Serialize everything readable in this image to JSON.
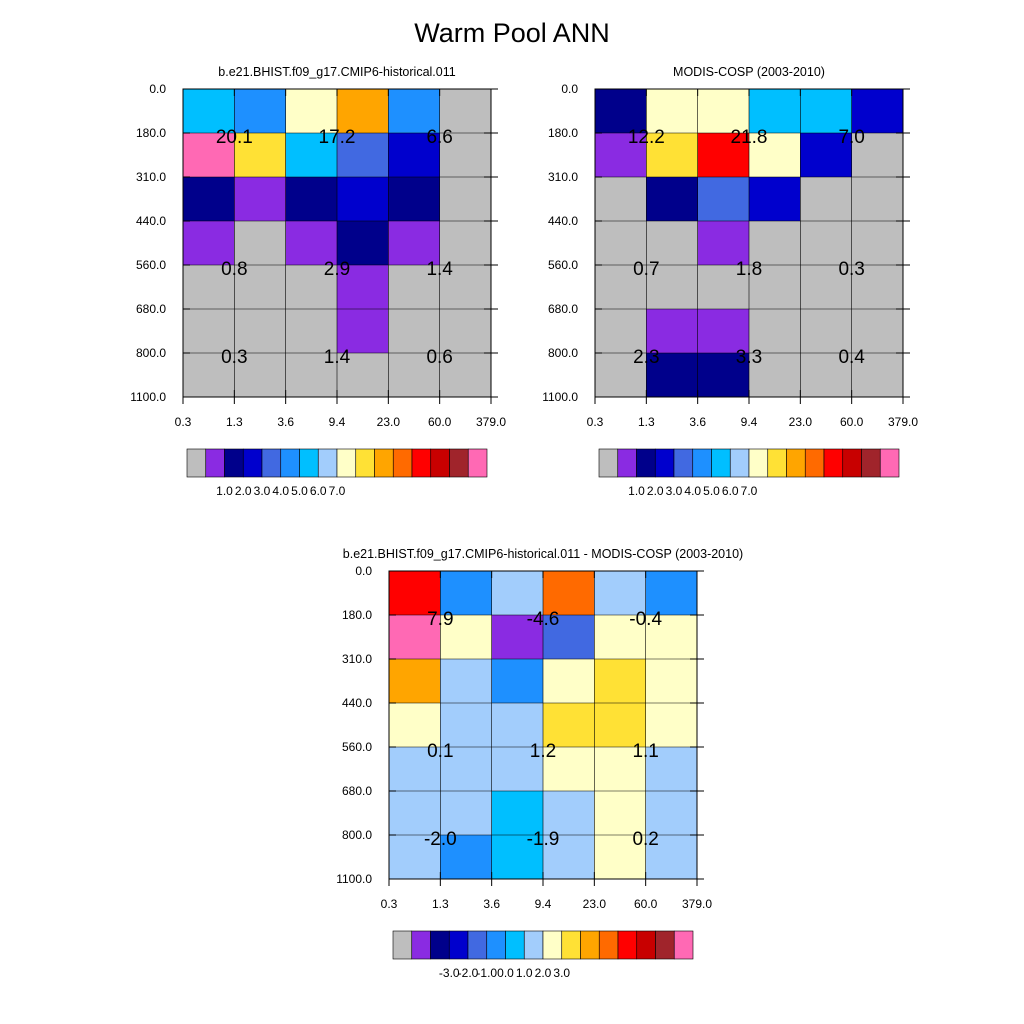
{
  "title": "Warm Pool ANN",
  "chart_data": [
    {
      "type": "heatmap",
      "title": "b.e21.BHIST.f09_g17.CMIP6-historical.011",
      "x_ticks": [
        "0.3",
        "1.3",
        "3.6",
        "9.4",
        "23.0",
        "60.0",
        "379.0"
      ],
      "y_ticks": [
        "0.0",
        "180.0",
        "310.0",
        "440.0",
        "560.0",
        "680.0",
        "800.0",
        "1100.0"
      ],
      "cell_levels": [
        [
          6,
          5,
          8,
          10,
          5,
          0
        ],
        [
          15,
          9,
          6,
          4,
          3,
          0
        ],
        [
          2,
          1,
          2,
          3,
          2,
          0
        ],
        [
          1,
          0,
          1,
          2,
          1,
          0
        ],
        [
          0,
          0,
          0,
          1,
          0,
          0
        ],
        [
          0,
          0,
          0,
          1,
          0,
          0
        ],
        [
          0,
          0,
          0,
          0,
          0,
          0
        ]
      ],
      "annotations": [
        {
          "row": 1,
          "col": 1,
          "text": "20.1"
        },
        {
          "row": 1,
          "col": 3,
          "text": "17.2"
        },
        {
          "row": 1,
          "col": 5,
          "text": "6.6"
        },
        {
          "row": 4,
          "col": 1,
          "text": "0.8"
        },
        {
          "row": 4,
          "col": 3,
          "text": "2.9"
        },
        {
          "row": 4,
          "col": 5,
          "text": "1.4"
        },
        {
          "row": 6,
          "col": 1,
          "text": "0.3"
        },
        {
          "row": 6,
          "col": 3,
          "text": "1.4"
        },
        {
          "row": 6,
          "col": 5,
          "text": "0.6"
        }
      ],
      "colorbar_labels": [
        "1.0",
        "2.0",
        "3.0",
        "4.0",
        "5.0",
        "6.0",
        "7.0"
      ],
      "colorbar_label_start": 1
    },
    {
      "type": "heatmap",
      "title": "MODIS-COSP (2003-2010)",
      "x_ticks": [
        "0.3",
        "1.3",
        "3.6",
        "9.4",
        "23.0",
        "60.0",
        "379.0"
      ],
      "y_ticks": [
        "0.0",
        "180.0",
        "310.0",
        "440.0",
        "560.0",
        "680.0",
        "800.0",
        "1100.0"
      ],
      "cell_levels": [
        [
          2,
          8,
          8,
          6,
          6,
          3
        ],
        [
          1,
          9,
          12,
          8,
          3,
          0
        ],
        [
          0,
          2,
          4,
          3,
          0,
          0
        ],
        [
          0,
          0,
          1,
          0,
          0,
          0
        ],
        [
          0,
          0,
          0,
          0,
          0,
          0
        ],
        [
          0,
          1,
          1,
          0,
          0,
          0
        ],
        [
          0,
          2,
          2,
          0,
          0,
          0
        ]
      ],
      "annotations": [
        {
          "row": 1,
          "col": 1,
          "text": "12.2"
        },
        {
          "row": 1,
          "col": 3,
          "text": "21.8"
        },
        {
          "row": 1,
          "col": 5,
          "text": "7.0"
        },
        {
          "row": 4,
          "col": 1,
          "text": "0.7"
        },
        {
          "row": 4,
          "col": 3,
          "text": "1.8"
        },
        {
          "row": 4,
          "col": 5,
          "text": "0.3"
        },
        {
          "row": 6,
          "col": 1,
          "text": "2.3"
        },
        {
          "row": 6,
          "col": 3,
          "text": "3.3"
        },
        {
          "row": 6,
          "col": 5,
          "text": "0.4"
        }
      ],
      "colorbar_labels": [
        "1.0",
        "2.0",
        "3.0",
        "4.0",
        "5.0",
        "6.0",
        "7.0"
      ],
      "colorbar_label_start": 1
    },
    {
      "type": "heatmap",
      "title": "b.e21.BHIST.f09_g17.CMIP6-historical.011 - MODIS-COSP (2003-2010)",
      "x_ticks": [
        "0.3",
        "1.3",
        "3.6",
        "9.4",
        "23.0",
        "60.0",
        "379.0"
      ],
      "y_ticks": [
        "0.0",
        "180.0",
        "310.0",
        "440.0",
        "560.0",
        "680.0",
        "800.0",
        "1100.0"
      ],
      "cell_levels": [
        [
          12,
          5,
          7,
          11,
          7,
          5
        ],
        [
          15,
          8,
          1,
          4,
          8,
          8
        ],
        [
          10,
          7,
          5,
          8,
          9,
          8
        ],
        [
          8,
          7,
          7,
          9,
          9,
          8
        ],
        [
          7,
          7,
          7,
          8,
          8,
          7
        ],
        [
          7,
          7,
          6,
          7,
          8,
          7
        ],
        [
          7,
          5,
          6,
          7,
          8,
          7
        ]
      ],
      "annotations": [
        {
          "row": 1,
          "col": 1,
          "text": "7.9"
        },
        {
          "row": 1,
          "col": 3,
          "text": "-4.6"
        },
        {
          "row": 1,
          "col": 5,
          "text": "-0.4"
        },
        {
          "row": 4,
          "col": 1,
          "text": "0.1"
        },
        {
          "row": 4,
          "col": 3,
          "text": "1.2"
        },
        {
          "row": 4,
          "col": 5,
          "text": "1.1"
        },
        {
          "row": 6,
          "col": 1,
          "text": "-2.0"
        },
        {
          "row": 6,
          "col": 3,
          "text": "-1.9"
        },
        {
          "row": 6,
          "col": 5,
          "text": "0.2"
        }
      ],
      "colorbar_labels": [
        "-3.0",
        "-2.0",
        "-1.0",
        "0.0",
        "1.0",
        "2.0",
        "3.0"
      ],
      "colorbar_label_start": 2
    }
  ],
  "colormap": [
    "#bebebe",
    "#8a2be2",
    "#00008b",
    "#0000cd",
    "#4169e1",
    "#1e90ff",
    "#00bfff",
    "#a2cdfc",
    "#ffffc8",
    "#ffe135",
    "#ffa500",
    "#ff6a00",
    "#ff0000",
    "#c80000",
    "#a0242b",
    "#ff69b4"
  ]
}
